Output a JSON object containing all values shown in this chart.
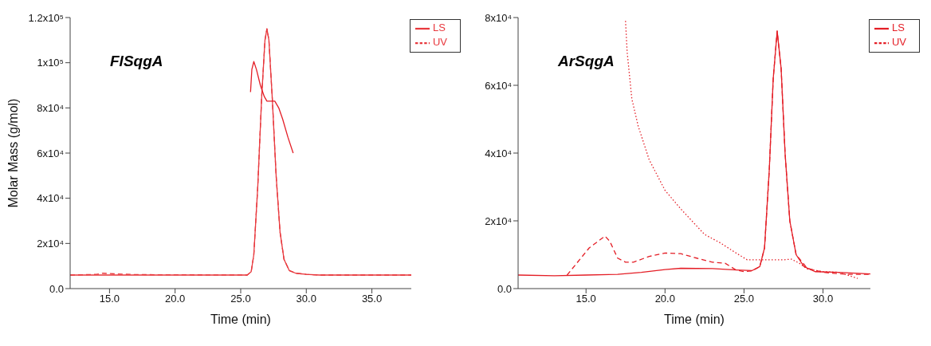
{
  "chart_data": [
    {
      "type": "line",
      "title": "FlSqgA",
      "xlabel": "Time (min)",
      "ylabel": "Molar Mass (g/mol)",
      "xlim": [
        12,
        38
      ],
      "xticks": [
        {
          "value": 15,
          "label": "15.0"
        },
        {
          "value": 20,
          "label": "20.0"
        },
        {
          "value": 25,
          "label": "25.0"
        },
        {
          "value": 30,
          "label": "30.0"
        },
        {
          "value": 35,
          "label": "35.0"
        }
      ],
      "ylim": [
        0,
        120000
      ],
      "yticks": [
        {
          "value": 0,
          "label": "0.0"
        },
        {
          "value": 20000,
          "label": "2x10⁴"
        },
        {
          "value": 40000,
          "label": "4x10⁴"
        },
        {
          "value": 60000,
          "label": "6x10⁴"
        },
        {
          "value": 80000,
          "label": "8x10⁴"
        },
        {
          "value": 100000,
          "label": "1x10⁵"
        },
        {
          "value": 120000,
          "label": "1.2x10⁵"
        }
      ],
      "grid": false,
      "legend": "top right",
      "marker": "none",
      "series": [
        {
          "name": "LS",
          "color": "#e8383d",
          "line_style": "solid",
          "x": [
            12,
            20,
            25.5,
            25.8,
            26.0,
            26.3,
            26.6,
            26.85,
            27.0,
            27.15,
            27.4,
            27.7,
            28.0,
            28.3,
            28.7,
            29.2,
            30,
            31,
            38
          ],
          "values": [
            6000,
            6000,
            6000,
            7500,
            15000,
            45000,
            85000,
            110000,
            115000,
            110000,
            85000,
            50000,
            25000,
            13000,
            8000,
            6800,
            6300,
            6000,
            6000
          ]
        },
        {
          "name": "UV",
          "color": "#e8383d",
          "line_style": "dashed",
          "x": [
            12,
            14,
            14.5,
            15.5,
            17,
            25.5,
            25.8,
            26.0,
            26.3,
            26.6,
            26.85,
            27.0,
            27.15,
            27.4,
            27.7,
            28.0,
            28.3,
            28.7,
            29.2,
            30,
            31,
            38
          ],
          "values": [
            6000,
            6300,
            6800,
            6500,
            6200,
            6000,
            7500,
            15000,
            45000,
            85000,
            110000,
            115000,
            110000,
            85000,
            50000,
            25000,
            13000,
            8000,
            6800,
            6300,
            6000,
            6000
          ]
        },
        {
          "color": "#e41e26",
          "line_style": "solid",
          "x": [
            25.75,
            25.85,
            26.0,
            26.2,
            26.5,
            26.8,
            27.0,
            27.6,
            27.9,
            28.2,
            28.6,
            29.0
          ],
          "values": [
            87000,
            97000,
            100500,
            97000,
            90000,
            85000,
            83000,
            83000,
            80000,
            75000,
            67000,
            60000
          ]
        }
      ]
    },
    {
      "type": "line",
      "title": "ArSqgA",
      "xlabel": "Time (min)",
      "xlim": [
        10.7,
        33
      ],
      "xticks": [
        {
          "value": 15,
          "label": "15.0"
        },
        {
          "value": 20,
          "label": "20.0"
        },
        {
          "value": 25,
          "label": "25.0"
        },
        {
          "value": 30,
          "label": "30.0"
        }
      ],
      "ylim": [
        0,
        80000
      ],
      "yticks": [
        {
          "value": 0,
          "label": "0.0"
        },
        {
          "value": 20000,
          "label": "2x10⁴"
        },
        {
          "value": 40000,
          "label": "4x10⁴"
        },
        {
          "value": 60000,
          "label": "6x10⁴"
        },
        {
          "value": 80000,
          "label": "8x10⁴"
        }
      ],
      "grid": false,
      "legend": "top right",
      "marker": "none",
      "series": [
        {
          "name": "LS",
          "color": "#e41e26",
          "line_style": "solid",
          "x": [
            10.7,
            13,
            15,
            17,
            18.5,
            20,
            21,
            23,
            24.5,
            25.5,
            26.0,
            26.3,
            26.6,
            26.85,
            27.1,
            27.35,
            27.6,
            27.9,
            28.3,
            28.8,
            29.5,
            31,
            33
          ],
          "values": [
            4000,
            3800,
            4000,
            4200,
            4800,
            5600,
            6000,
            5900,
            5500,
            5300,
            6500,
            12000,
            35000,
            62000,
            76000,
            65000,
            40000,
            20000,
            10000,
            6500,
            5000,
            4800,
            4300
          ]
        },
        {
          "name": "UV",
          "color": "#e41e26",
          "line_style": "dashed",
          "x": [
            13.8,
            14.5,
            15.2,
            16.2,
            16.5,
            17.0,
            17.5,
            18,
            19,
            20,
            21,
            22,
            23,
            23.8,
            24.5,
            25,
            25.5,
            26.0,
            26.3,
            26.6,
            26.85,
            27.1,
            27.35,
            27.6,
            27.9,
            28.3,
            29,
            30,
            31.5,
            33
          ],
          "values": [
            4000,
            8000,
            12000,
            15500,
            14000,
            9000,
            7800,
            7800,
            9500,
            10500,
            10300,
            9000,
            7800,
            7500,
            5500,
            5000,
            5200,
            6500,
            12000,
            35000,
            62000,
            76000,
            65000,
            40000,
            20000,
            10000,
            6000,
            4800,
            4200,
            4200
          ]
        },
        {
          "color": "#e41e26",
          "line_style": "dotted",
          "x": [
            17.5,
            17.6,
            17.9,
            18.3,
            19,
            20,
            21,
            22,
            22.5,
            23.5,
            24.5,
            25.2,
            26,
            27.5,
            28,
            28.5,
            29,
            30,
            31,
            32.2
          ],
          "values": [
            79000,
            70000,
            56000,
            48000,
            38000,
            29000,
            23500,
            18500,
            16000,
            13500,
            10500,
            8500,
            8500,
            8500,
            8700,
            7500,
            5800,
            5000,
            4800,
            3000
          ]
        }
      ]
    }
  ]
}
